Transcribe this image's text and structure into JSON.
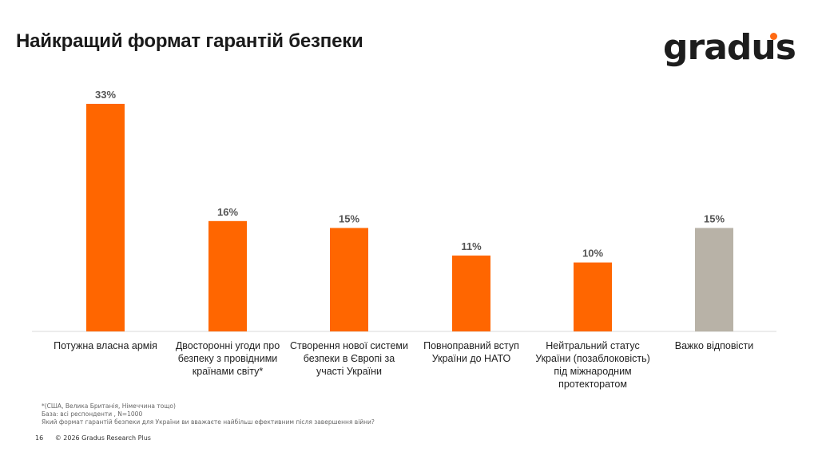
{
  "title": "Найкращий формат гарантій безпеки",
  "logo": {
    "text": "gradus",
    "accent": "#ff6a13"
  },
  "chart_data": {
    "type": "bar",
    "categories": [
      "Потужна власна армія",
      "Двосторонні угоди про безпеку з провідними країнами світу*",
      "Створення нової системи безпеки в Європі за участі України",
      "Повноправний вступ України до НАТО",
      "Нейтральний статус України (позаблоковість) під міжнародним протекторатом",
      "Важко відповісти"
    ],
    "values": [
      33,
      16,
      15,
      11,
      10,
      15
    ],
    "data_labels": [
      "33%",
      "16%",
      "15%",
      "11%",
      "10%",
      "15%"
    ],
    "colors": [
      "#ff6600",
      "#ff6600",
      "#ff6600",
      "#ff6600",
      "#ff6600",
      "#b8b2a7"
    ],
    "ylim": [
      0,
      33
    ],
    "grid": false
  },
  "notes": [
    "*(США, Велика Британія, Німеччина тощо)",
    "База: всі респонденти , N=1000",
    "Який формат гарантій безпеки для України ви вважаєте найбільш ефективним після завершення війни?"
  ],
  "footer": {
    "page": "16",
    "copyright": "© 2026 Gradus Research Plus"
  }
}
